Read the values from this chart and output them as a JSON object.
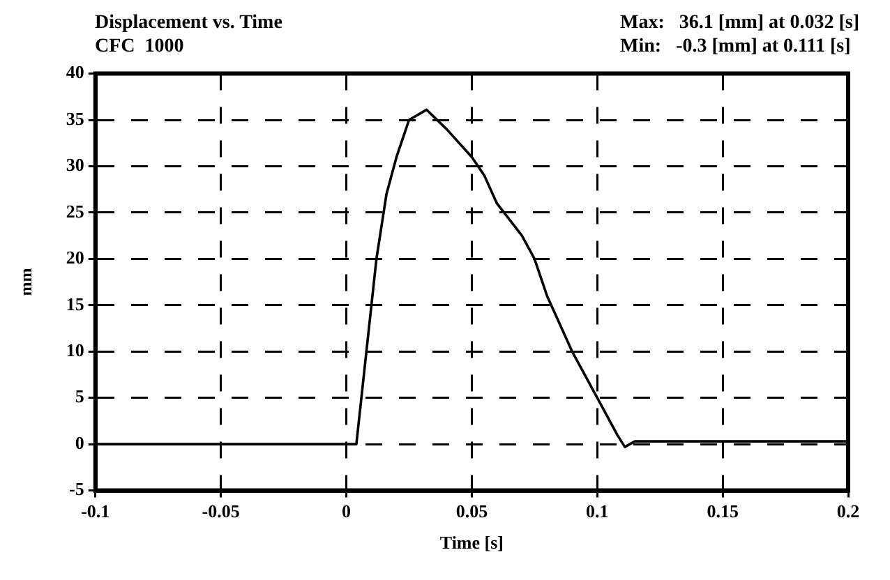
{
  "chart_data": {
    "type": "line",
    "title": "Displacement vs. Time",
    "subtitle": "CFC  1000",
    "annotations": [
      "Max:   36.1 [mm] at 0.032 [s]",
      "Min:   -0.3 [mm] at 0.111 [s]"
    ],
    "xlabel": "Time [s]",
    "ylabel": "mm",
    "x": [
      -0.1,
      0.004,
      0.008,
      0.012,
      0.016,
      0.02,
      0.025,
      0.032,
      0.04,
      0.05,
      0.055,
      0.06,
      0.07,
      0.075,
      0.08,
      0.09,
      0.1,
      0.108,
      0.111,
      0.115,
      0.2
    ],
    "series": [
      {
        "color": "#000000",
        "values": [
          0,
          0,
          10,
          20,
          27,
          31,
          35,
          36.1,
          34,
          31,
          29,
          26,
          22.5,
          20,
          16,
          10,
          5,
          1,
          -0.3,
          0.3,
          0.3
        ]
      }
    ],
    "xlim": [
      -0.1,
      0.2
    ],
    "xticks": [
      -0.1,
      -0.05,
      0,
      0.05,
      0.1,
      0.15,
      0.2
    ],
    "ylim": [
      -5,
      40
    ],
    "yticks": [
      -5,
      0,
      5,
      10,
      15,
      20,
      25,
      30,
      35,
      40
    ],
    "grid": true,
    "marker": "none",
    "line_style": "solid",
    "legend": false
  }
}
